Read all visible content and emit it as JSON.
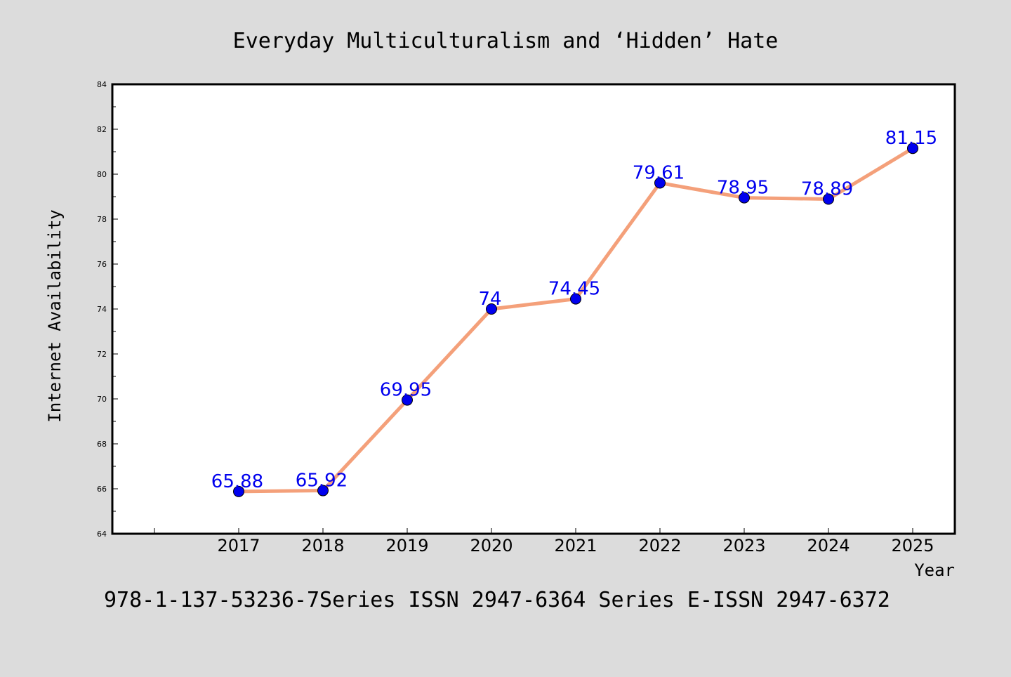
{
  "chart_data": {
    "type": "line",
    "title": "Everyday Multiculturalism and ‘Hidden’ Hate",
    "xlabel": "Year",
    "ylabel": "Internet Availability",
    "footer": "978-1-137-53236-7Series ISSN 2947-6364 Series E-ISSN 2947-6372",
    "categories": [
      "2017",
      "2018",
      "2019",
      "2020",
      "2021",
      "2022",
      "2023",
      "2024",
      "2025"
    ],
    "series": [
      {
        "values": [
          65.88,
          65.92,
          69.95,
          74,
          74.45,
          79.61,
          78.95,
          78.89,
          81.15
        ],
        "labels": [
          "65.88",
          "65.92",
          "69.95",
          "74",
          "74.45",
          "79.61",
          "78.95",
          "78.89",
          "81.15"
        ],
        "line_color": "#f4a07a",
        "marker_color": "#0000ee",
        "label_color": "#0000ee"
      }
    ],
    "ylim": [
      64,
      84
    ],
    "yticks": [
      64,
      66,
      68,
      70,
      72,
      74,
      76,
      78,
      80,
      82,
      84
    ],
    "grid": false,
    "background": "#dcdcdc",
    "plot_background": "#ffffff"
  }
}
